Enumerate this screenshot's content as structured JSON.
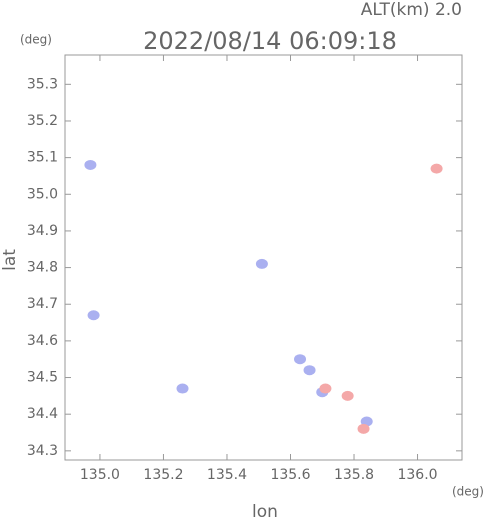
{
  "chart_data": {
    "type": "scatter",
    "title": "2022/08/14 06:09:18",
    "subtitle": "ALT(km) 2.0",
    "y_unit": "(deg)",
    "x_unit": "(deg)",
    "x_label": "lon",
    "y_label": "lat",
    "xlim": [
      134.89,
      136.14
    ],
    "ylim": [
      34.275,
      35.38
    ],
    "xticks": [
      {
        "value": 135,
        "label": "135.0"
      },
      135.2,
      135.4,
      135.6,
      135.8,
      {
        "value": 136,
        "label": "136.0"
      }
    ],
    "yticks": [
      34.3,
      34.4,
      34.5,
      34.6,
      34.7,
      34.8,
      34.9,
      {
        "value": 35,
        "label": "35.0"
      },
      35.1,
      35.2,
      35.3
    ],
    "series": [
      {
        "color": "#aab0f0",
        "x": [
          134.97,
          134.98,
          135.26,
          135.51,
          135.66,
          135.7,
          135.84,
          135.63
        ],
        "y": [
          35.08,
          34.67,
          34.47,
          34.81,
          34.52,
          34.46,
          34.38,
          34.55
        ]
      },
      {
        "color": "#f4a8a8",
        "x": [
          136.06,
          135.78,
          135.83,
          135.71
        ],
        "y": [
          35.07,
          34.45,
          34.36,
          34.47
        ]
      }
    ]
  }
}
